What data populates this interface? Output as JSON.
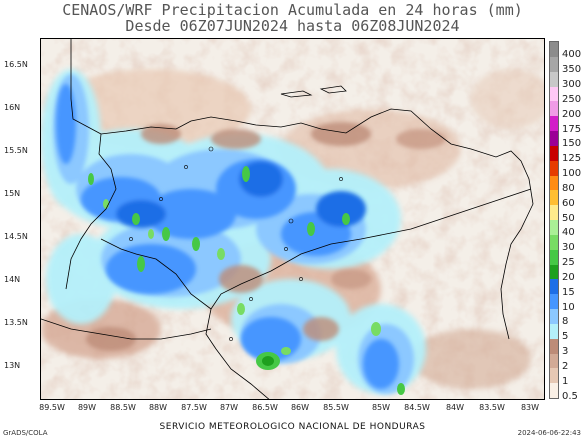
{
  "title_line1": "CENAOS/WRF Precipitacion Acumulada en 24 horas (mm)",
  "title_line2": "Desde 06Z07JUN2024 hasta 06Z08JUN2024",
  "y_ticks": [
    "16.5N",
    "16N",
    "15.5N",
    "15N",
    "14.5N",
    "14N",
    "13.5N",
    "13N"
  ],
  "x_ticks": [
    "89.5W",
    "89W",
    "88.5W",
    "88W",
    "87.5W",
    "87W",
    "86.5W",
    "86W",
    "85.5W",
    "85W",
    "84.5W",
    "84W",
    "83.5W",
    "83W"
  ],
  "colorbar": {
    "labels": [
      "400",
      "350",
      "300",
      "250",
      "200",
      "175",
      "150",
      "125",
      "100",
      "80",
      "60",
      "50",
      "40",
      "30",
      "25",
      "20",
      "15",
      "10",
      "8",
      "5",
      "3",
      "2",
      "1",
      "0.5"
    ],
    "colors": [
      "#8c8c8c",
      "#a6a6a6",
      "#c8c8c8",
      "#ffc8f5",
      "#f09be6",
      "#d21ec8",
      "#9b0096",
      "#c80000",
      "#e63c00",
      "#ff8c14",
      "#ffbe32",
      "#ffeb8c",
      "#aaf096",
      "#78dc64",
      "#46c846",
      "#1ea01e",
      "#1e6ee6",
      "#4696ff",
      "#8cc8ff",
      "#b4f0fa",
      "#bd8c78",
      "#d2aa96",
      "#e6c8b4",
      "#faf0e6"
    ]
  },
  "footer_left": "GrADS/COLA",
  "footer_center": "SERVICIO METEOROLOGICO NACIONAL DE HONDURAS",
  "footer_right": "2024-06-06-22:43"
}
